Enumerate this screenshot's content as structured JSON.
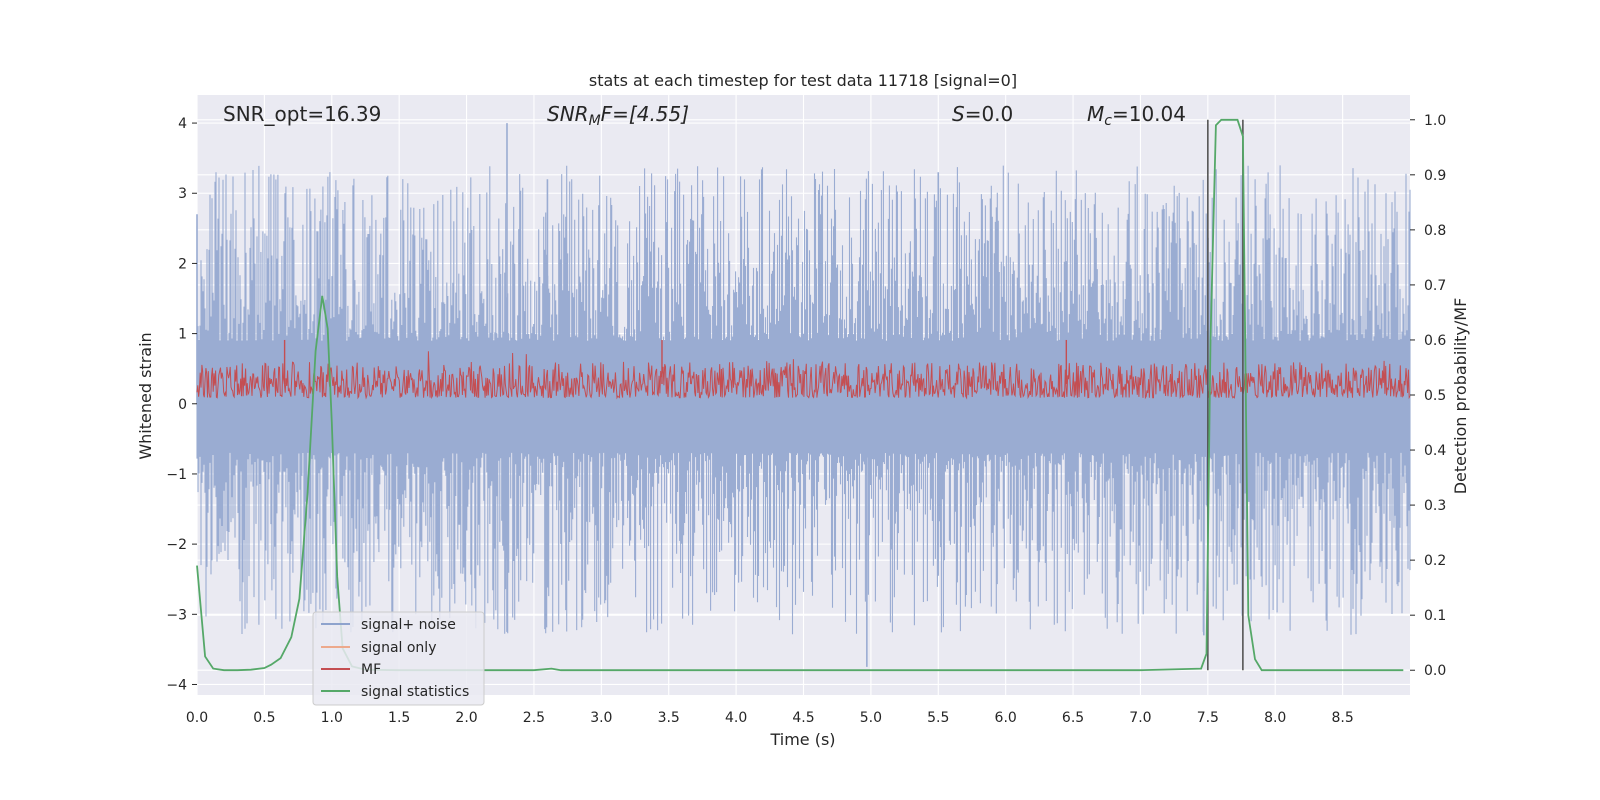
{
  "chart_data": {
    "type": "line",
    "title": "stats at each timestep for test data 11718 [signal=0]",
    "xlabel": "Time (s)",
    "ylabel_left": "Whitened strain",
    "ylabel_right": "Detection probability/MF",
    "xlim": [
      0,
      9
    ],
    "ylim_left": [
      -4.15,
      4.4
    ],
    "ylim_right": [
      -0.045,
      1.045
    ],
    "x_ticks": [
      "0.0",
      "0.5",
      "1.0",
      "1.5",
      "2.0",
      "2.5",
      "3.0",
      "3.5",
      "4.0",
      "4.5",
      "5.0",
      "5.5",
      "6.0",
      "6.5",
      "7.0",
      "7.5",
      "8.0",
      "8.5"
    ],
    "y_ticks_left": [
      "4",
      "3",
      "2",
      "1",
      "0",
      "−1",
      "−2",
      "−3",
      "−4"
    ],
    "y_ticks_right": [
      "1.0",
      "0.9",
      "0.8",
      "0.7",
      "0.6",
      "0.5",
      "0.4",
      "0.3",
      "0.2",
      "0.1",
      "0.0"
    ],
    "annotations": {
      "snr_opt": "SNR_opt=16.39",
      "snr_mf_base": "SNR",
      "snr_mf_sub": "M",
      "snr_mf_rest": "F=[4.55]",
      "s_var": "S",
      "s_rest": "=0.0",
      "mc_var": "M",
      "mc_sub": "c",
      "mc_rest": "=10.04"
    },
    "legend": {
      "placement": "lower-left",
      "entries": [
        {
          "label": "signal+ noise",
          "color": "#8ea3cd"
        },
        {
          "label": "signal only",
          "color": "#eda98c"
        },
        {
          "label": "MF",
          "color": "#c44e52"
        },
        {
          "label": "signal statistics",
          "color": "#55a868"
        }
      ]
    },
    "series": [
      {
        "name": "signal+ noise",
        "color": "#9aacd2",
        "style": "dense noise, upper envelope ~1.5-4, lower envelope ~-1.2 to -3.8",
        "spikes": [
          [
            2.3,
            4.0
          ],
          [
            2.3,
            -3.25
          ],
          [
            4.97,
            -3.75
          ],
          [
            7.47,
            -3.3
          ],
          [
            5.5,
            3.3
          ],
          [
            2.6,
            3.2
          ],
          [
            0.0,
            2.7
          ]
        ]
      },
      {
        "name": "MF",
        "color": "#c44e52",
        "axis": "right",
        "style": "dense noise band between ~0.49 and ~0.56",
        "peaks": [
          [
            0.65,
            0.6
          ],
          [
            3.45,
            0.6
          ],
          [
            6.45,
            0.6
          ]
        ]
      },
      {
        "name": "signal statistics",
        "color": "#55a868",
        "axis": "right",
        "x": [
          0.0,
          0.06,
          0.12,
          0.2,
          0.3,
          0.4,
          0.5,
          0.55,
          0.62,
          0.7,
          0.76,
          0.82,
          0.88,
          0.93,
          0.97,
          1.0,
          1.04,
          1.08,
          1.15,
          1.25,
          1.5,
          2.0,
          2.5,
          2.63,
          2.7,
          3.0,
          4.0,
          5.0,
          6.0,
          7.0,
          7.45,
          7.49,
          7.52,
          7.56,
          7.6,
          7.65,
          7.72,
          7.76,
          7.8,
          7.85,
          7.9,
          8.0,
          8.5,
          8.95
        ],
        "values": [
          0.19,
          0.025,
          0.003,
          0.0,
          0.0,
          0.001,
          0.004,
          0.01,
          0.022,
          0.06,
          0.13,
          0.32,
          0.58,
          0.68,
          0.62,
          0.45,
          0.17,
          0.04,
          0.007,
          0.001,
          0.0,
          0.0,
          0.0,
          0.003,
          0.0,
          0.0,
          0.0,
          0.0,
          0.0,
          0.0,
          0.003,
          0.03,
          0.6,
          0.99,
          1.0,
          1.0,
          1.0,
          0.97,
          0.1,
          0.02,
          0.0,
          0.0,
          0.0,
          0.0
        ]
      }
    ],
    "vertical_lines": [
      7.5,
      7.76
    ]
  }
}
